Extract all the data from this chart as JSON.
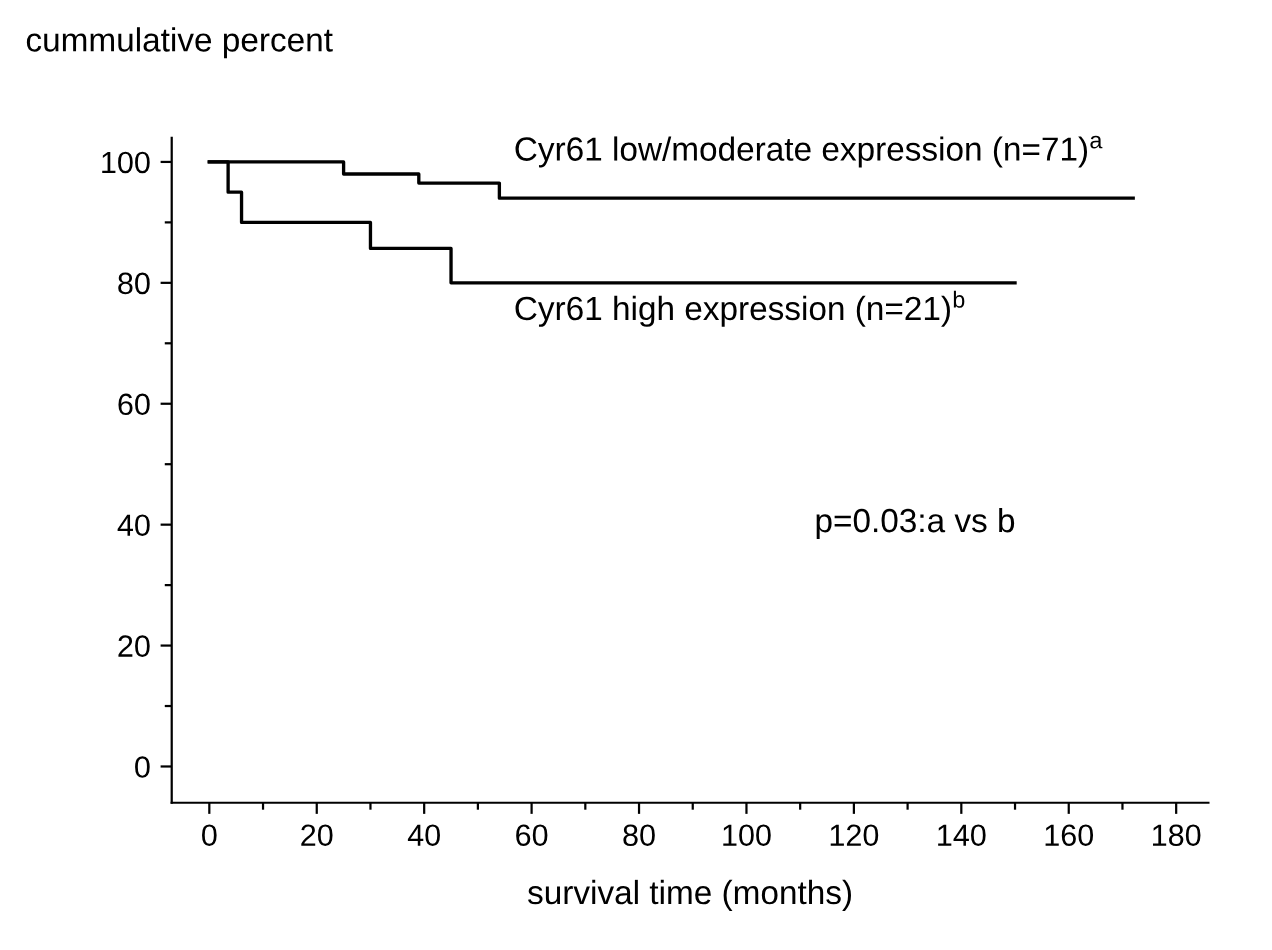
{
  "chart_data": {
    "type": "step",
    "ylabel": "cummulative percent",
    "xlabel": "survival time (months)",
    "series": [
      {
        "color": "#000000",
        "x": [
          0,
          25,
          25,
          39,
          39,
          54,
          54,
          172
        ],
        "values": [
          100,
          100,
          98,
          98,
          96.5,
          96.5,
          94,
          94
        ]
      },
      {
        "color": "#000000",
        "x": [
          0,
          3.5,
          3.5,
          6,
          6,
          30,
          30,
          45,
          45,
          150
        ],
        "values": [
          100,
          100,
          95,
          95,
          90,
          90,
          85.7,
          85.7,
          80,
          80
        ]
      }
    ],
    "xlim": [
      -7,
      186
    ],
    "ylim": [
      -6,
      104
    ],
    "xticks": [
      0,
      {
        "value": 10,
        "label": null
      },
      20,
      {
        "value": 30,
        "label": null
      },
      40,
      {
        "value": 50,
        "label": null
      },
      60,
      {
        "value": 70,
        "label": null
      },
      80,
      {
        "value": 90,
        "label": null
      },
      100,
      {
        "value": 110,
        "label": null
      },
      120,
      {
        "value": 130,
        "label": null
      },
      140,
      {
        "value": 150,
        "label": null
      },
      160,
      {
        "value": 170,
        "label": null
      },
      180
    ],
    "yticks": [
      0,
      {
        "value": 10,
        "label": null
      },
      20,
      {
        "value": 30,
        "label": null
      },
      40,
      {
        "value": 50,
        "label": null
      },
      60,
      {
        "value": 70,
        "label": null
      },
      80,
      {
        "value": 90,
        "label": null
      },
      100
    ],
    "annotations": [
      "Cyr61 low/moderate expression (n=71)$^{a}$",
      "Cyr61 high expression (n=21)$^{b}$",
      "p=0.03:a vs b"
    ],
    "grid": false,
    "line_style": "solid",
    "marker": "none"
  }
}
